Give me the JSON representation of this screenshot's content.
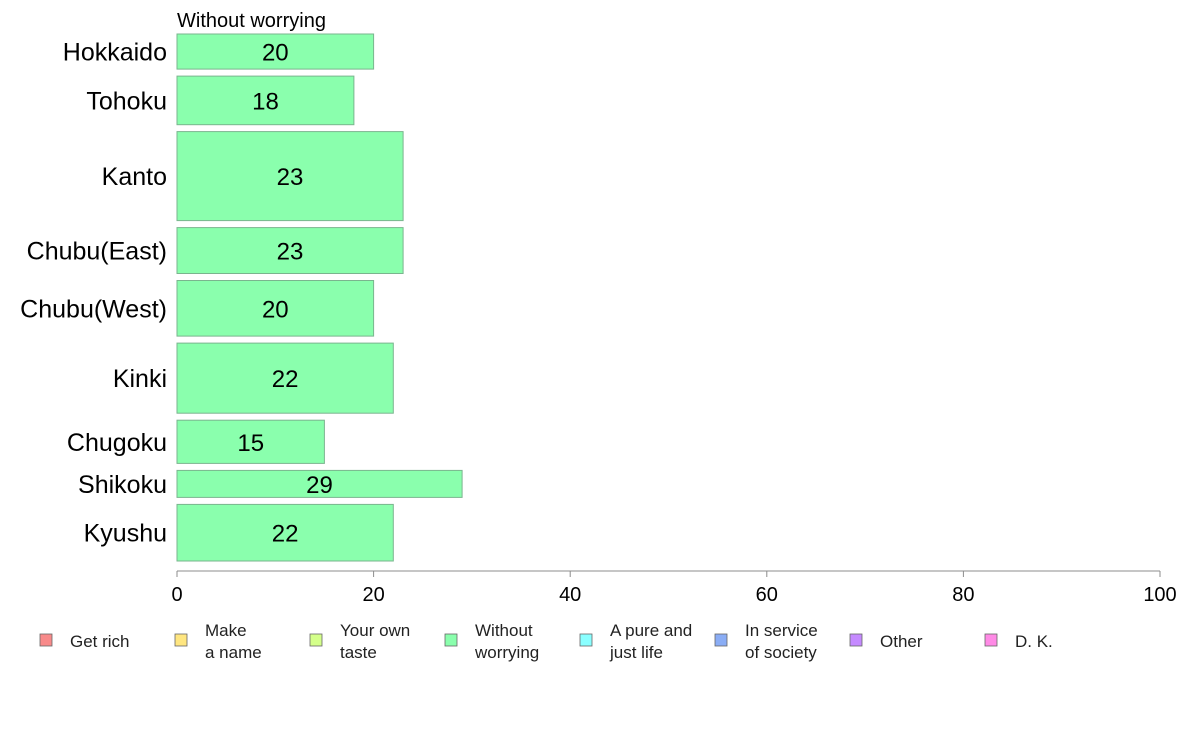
{
  "chart_data": {
    "type": "bar",
    "orientation": "horizontal",
    "title": "Without worrying",
    "categories": [
      "Hokkaido",
      "Tohoku",
      "Kanto",
      "Chubu(East)",
      "Chubu(West)",
      "Kinki",
      "Chugoku",
      "Shikoku",
      "Kyushu"
    ],
    "category_weights": [
      0.65,
      0.9,
      1.65,
      0.85,
      1.03,
      1.3,
      0.8,
      0.5,
      1.05
    ],
    "series": [
      {
        "name": "Without worrying",
        "values": [
          20,
          18,
          23,
          23,
          20,
          22,
          15,
          29,
          22
        ],
        "color": "#8affad"
      }
    ],
    "bar_labels": [
      "20",
      "18",
      "23",
      "23",
      "20",
      "22",
      "15",
      "29",
      "22"
    ],
    "xlim": [
      0,
      100
    ],
    "xticks": [
      0,
      20,
      40,
      60,
      80,
      100
    ],
    "xtick_labels": [
      "0",
      "20",
      "40",
      "60",
      "80",
      "100"
    ],
    "grid": false,
    "legend": {
      "placement": "bottom",
      "items": [
        {
          "lines": [
            "Get rich"
          ],
          "color": "#f88a8a"
        },
        {
          "lines": [
            "Make",
            "a name"
          ],
          "color": "#ffe680"
        },
        {
          "lines": [
            "Your own",
            "taste"
          ],
          "color": "#d4ff8a"
        },
        {
          "lines": [
            "Without",
            "worrying"
          ],
          "color": "#8affad"
        },
        {
          "lines": [
            "A pure and",
            "just life"
          ],
          "color": "#8affff"
        },
        {
          "lines": [
            "In service",
            "of society"
          ],
          "color": "#8aadf5"
        },
        {
          "lines": [
            "Other"
          ],
          "color": "#c58aff"
        },
        {
          "lines": [
            "D. K."
          ],
          "color": "#ff8ae6"
        }
      ]
    }
  }
}
